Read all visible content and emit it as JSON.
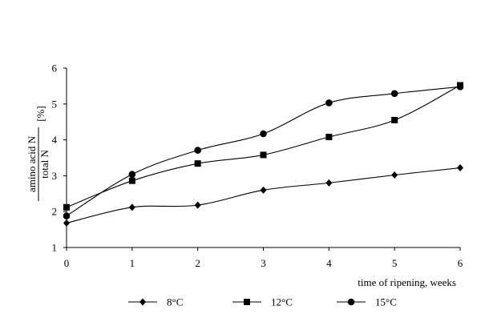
{
  "chart_data": {
    "type": "line",
    "x": [
      0,
      1,
      2,
      3,
      4,
      5,
      6
    ],
    "xlim": [
      0,
      6
    ],
    "ylim": [
      1,
      6
    ],
    "x_ticks": [
      "0",
      "1",
      "2",
      "3",
      "4",
      "5",
      "6"
    ],
    "y_ticks": [
      "1",
      "2",
      "3",
      "4",
      "5",
      "6"
    ],
    "xlabel": "time of ripening, weeks",
    "ylabel": {
      "numerator": "amino acid N",
      "denominator": "total N",
      "unit": "[%]"
    },
    "smooth": true,
    "grid": false,
    "legend_position": "bottom",
    "series": [
      {
        "name": "8°C",
        "marker": "diamond",
        "values": [
          1.68,
          2.12,
          2.18,
          2.6,
          2.8,
          3.02,
          3.22
        ]
      },
      {
        "name": "12°C",
        "marker": "square",
        "values": [
          2.12,
          2.86,
          3.34,
          3.58,
          4.08,
          4.55,
          5.52
        ]
      },
      {
        "name": "15°C",
        "marker": "circle",
        "values": [
          1.88,
          3.04,
          3.71,
          4.17,
          5.03,
          5.29,
          5.48
        ]
      }
    ],
    "line_color": "#000000"
  }
}
